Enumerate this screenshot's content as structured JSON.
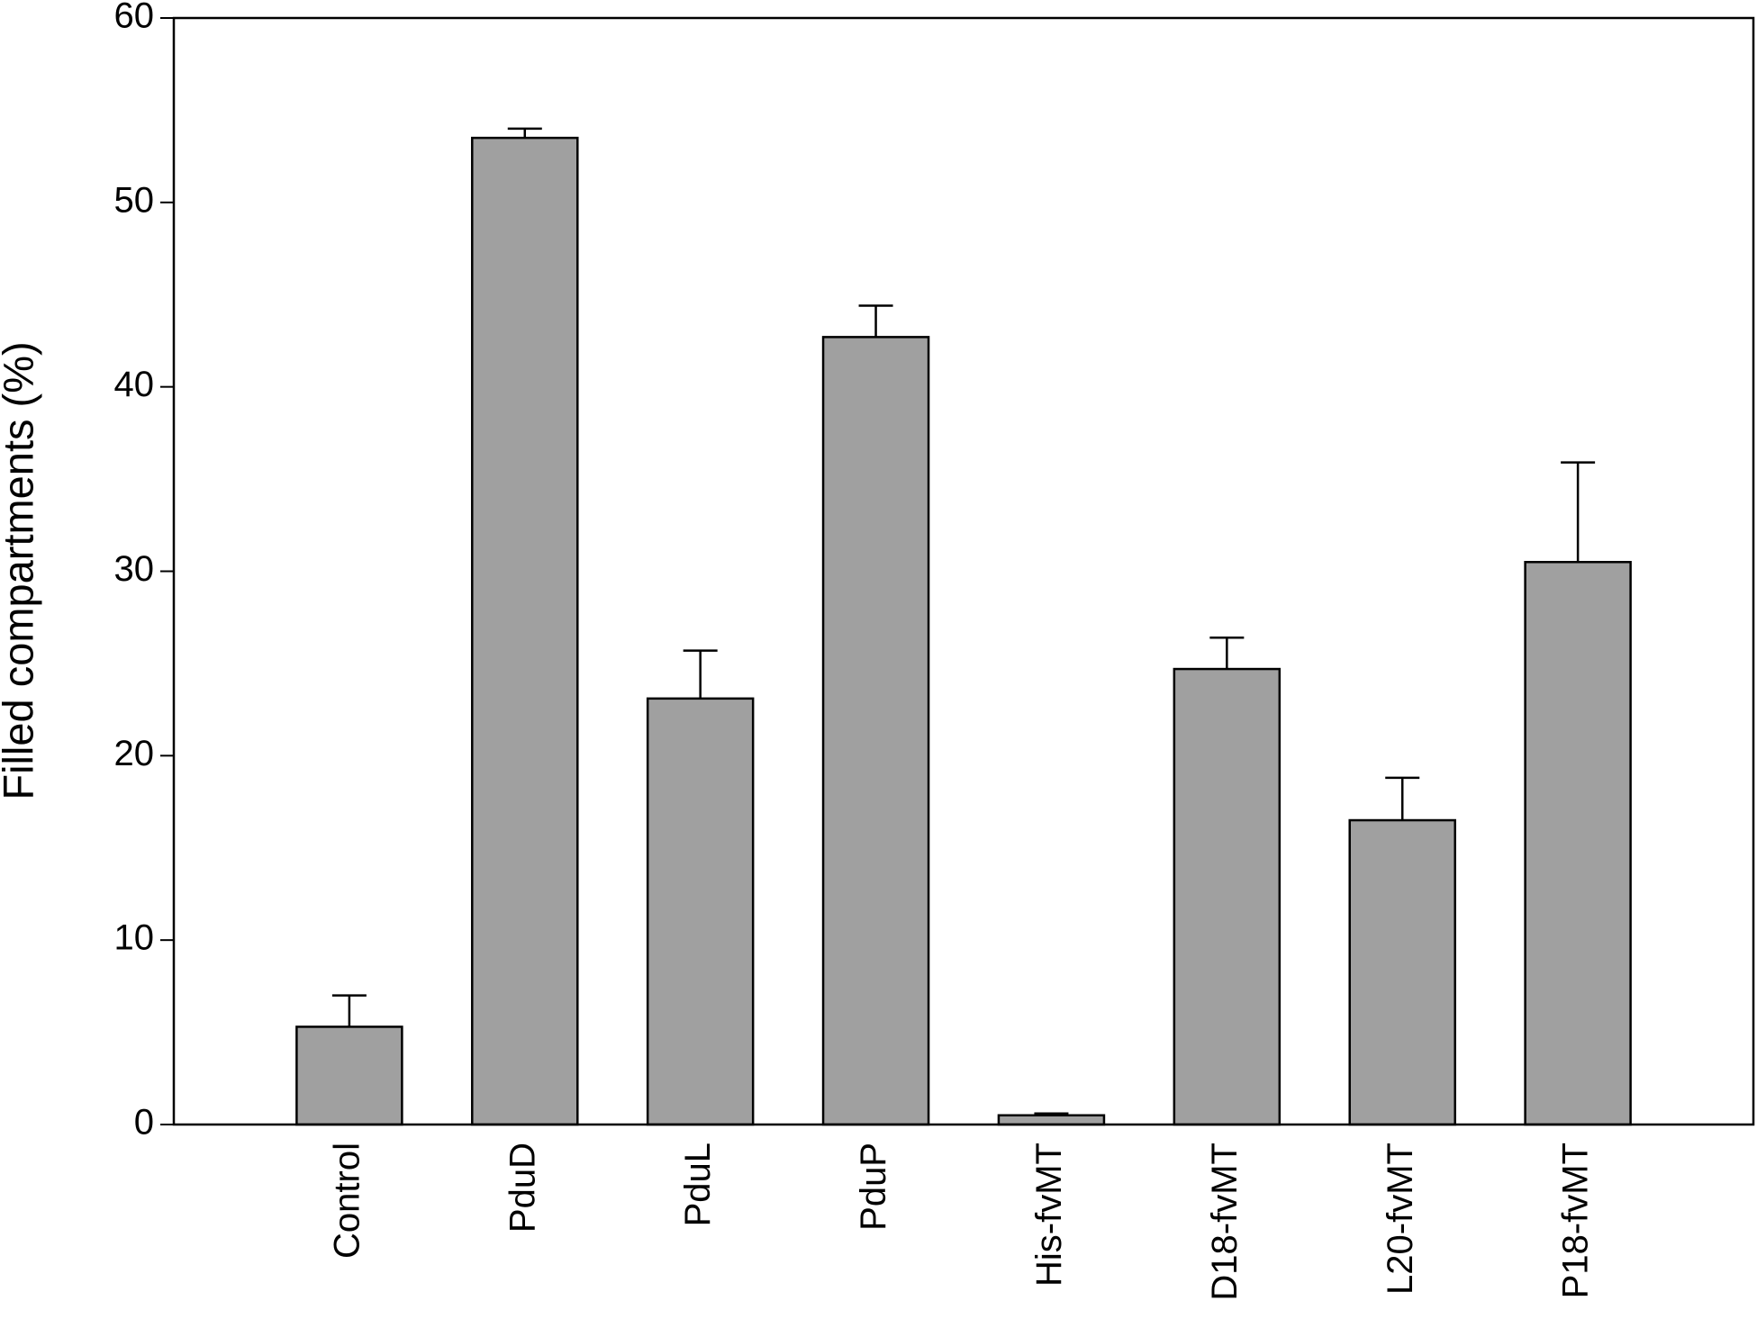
{
  "chart_data": {
    "type": "bar",
    "y_label": "Filled compartments (%)",
    "categories": [
      "Control",
      "PduD",
      "PduL",
      "PduP",
      "His-fvMT",
      "D18-fvMT",
      "L20-fvMT",
      "P18-fvMT"
    ],
    "values": [
      5.3,
      53.5,
      23.1,
      42.7,
      0.5,
      24.7,
      16.5,
      30.5
    ],
    "errors": [
      1.7,
      0.5,
      2.6,
      1.7,
      0.1,
      1.7,
      2.3,
      5.4
    ],
    "color": "#a0a0a0",
    "ylim": [
      0,
      60
    ],
    "yticks": [
      0,
      10,
      20,
      30,
      40,
      50,
      60
    ],
    "grid": false
  }
}
